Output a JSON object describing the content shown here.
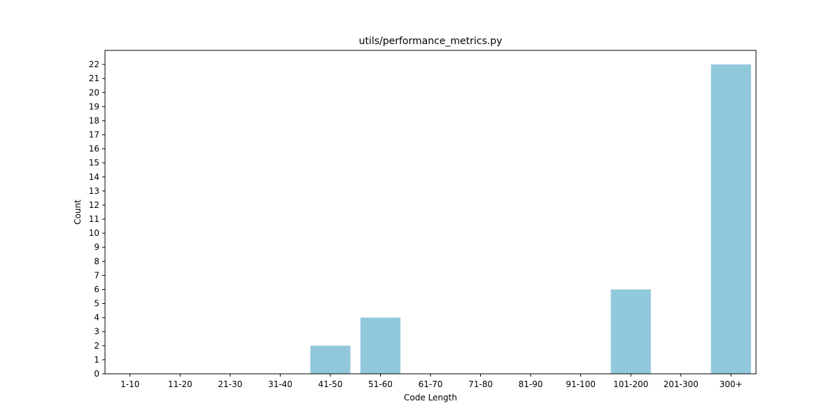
{
  "chart_data": {
    "type": "bar",
    "title": "utils/performance_metrics.py",
    "xlabel": "Code Length",
    "ylabel": "Count",
    "categories": [
      "1-10",
      "11-20",
      "21-30",
      "31-40",
      "41-50",
      "51-60",
      "61-70",
      "71-80",
      "81-90",
      "91-100",
      "101-200",
      "201-300",
      "300+"
    ],
    "values": [
      0,
      0,
      0,
      0,
      2,
      4,
      0,
      0,
      0,
      0,
      6,
      0,
      22
    ],
    "ylim": [
      0,
      23
    ],
    "yticks": [
      0,
      1,
      2,
      3,
      4,
      5,
      6,
      7,
      8,
      9,
      10,
      11,
      12,
      13,
      14,
      15,
      16,
      17,
      18,
      19,
      20,
      21,
      22
    ],
    "grid": false,
    "bar_color": "#92c8dc"
  }
}
